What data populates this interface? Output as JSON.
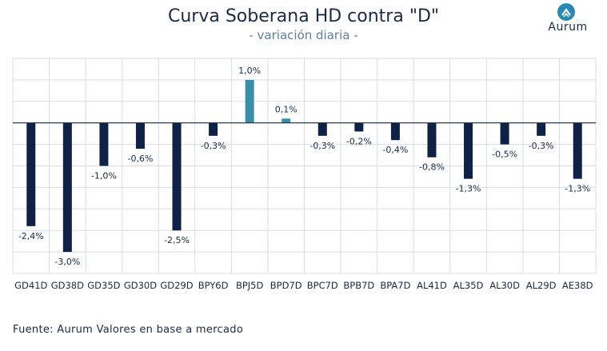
{
  "header": {
    "title": "Curva Soberana HD contra \"D\"",
    "subtitle": "- variación diaria -"
  },
  "logo": {
    "text": "Aurum",
    "icon": "mountain-icon"
  },
  "footer": {
    "source": "Fuente: Aurum Valores en base a mercado"
  },
  "chart_data": {
    "type": "bar",
    "categories": [
      "GD41D",
      "GD38D",
      "GD35D",
      "GD30D",
      "GD29D",
      "BPY6D",
      "BPJ5D",
      "BPD7D",
      "BPC7D",
      "BPB7D",
      "BPA7D",
      "AL41D",
      "AL35D",
      "AL30D",
      "AL29D",
      "AE38D"
    ],
    "values": [
      -2.4,
      -3.0,
      -1.0,
      -0.6,
      -2.5,
      -0.3,
      1.0,
      0.1,
      -0.3,
      -0.2,
      -0.4,
      -0.8,
      -1.3,
      -0.5,
      -0.3,
      -1.3
    ],
    "labels": [
      "-2,4%",
      "-3,0%",
      "-1,0%",
      "-0,6%",
      "-2,5%",
      "-0,3%",
      "1,0%",
      "0,1%",
      "-0,3%",
      "-0,2%",
      "-0,4%",
      "-0,8%",
      "-1,3%",
      "-0,5%",
      "-0,3%",
      "-1,3%"
    ],
    "ylim": [
      -3.5,
      1.5
    ],
    "grid": true,
    "colors": {
      "negative": "#0f2147",
      "positive": "#3a8ea8",
      "grid": "#d9dde3",
      "zero_line": "#1b2a44",
      "label": "#1b2a44"
    }
  }
}
